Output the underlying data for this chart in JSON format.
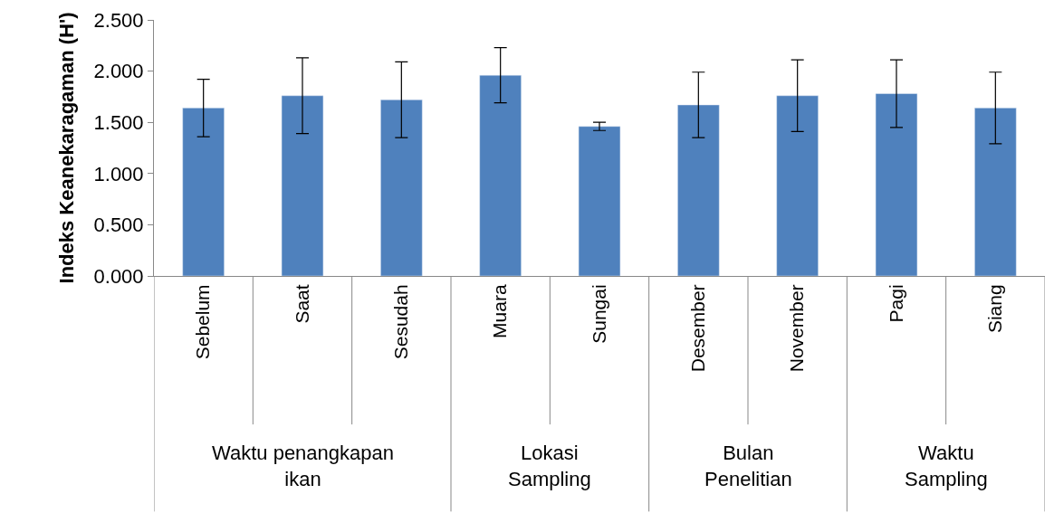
{
  "chart_data": {
    "type": "bar",
    "ylabel": "Indeks Keanekaragaman (H')",
    "categories": [
      "Sebelum",
      "Saat",
      "Sesudah",
      "Muara",
      "Sungai",
      "Desember",
      "November",
      "Pagi",
      "Siang"
    ],
    "values": [
      1.64,
      1.76,
      1.72,
      1.96,
      1.46,
      1.67,
      1.76,
      1.78,
      1.64
    ],
    "errors": [
      0.28,
      0.37,
      0.37,
      0.27,
      0.04,
      0.32,
      0.35,
      0.33,
      0.35
    ],
    "color": "#4f81bd",
    "ylim": [
      0,
      2.5
    ],
    "yticks": [
      {
        "value": 0,
        "label": "0.000"
      },
      {
        "value": 0.5,
        "label": "0.500"
      },
      {
        "value": 1,
        "label": "1.000"
      },
      {
        "value": 1.5,
        "label": "1.500"
      },
      {
        "value": 2,
        "label": "2.000"
      },
      {
        "value": 2.5,
        "label": "2.500"
      }
    ],
    "annotations": [
      "Waktu penangkapan ikan",
      "Lokasi Sampling",
      "Bulan Penelitian",
      "Waktu Sampling"
    ]
  }
}
